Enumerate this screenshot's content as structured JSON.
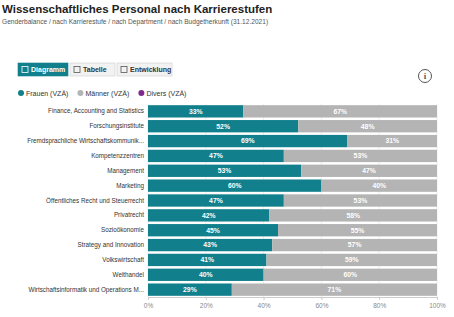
{
  "chart_data": {
    "type": "bar",
    "orientation": "horizontal",
    "stacked": true,
    "data_labels": true,
    "grid": true,
    "legend": "top-left",
    "title": "Wissenschaftliches Personal nach Karrierestufen",
    "subtitle": "Genderbalance / nach Karrierestufe / nach Department / nach Budgetherkunft (31.12.2021)",
    "categories": [
      "Finance, Accounting and Statistics",
      "Forschungsinstitute",
      "Fremdsprachliche Wirtschaftskommunik...",
      "Kompetenzzentren",
      "Management",
      "Marketing",
      "Öffentliches Recht und Steuerrecht",
      "Privatrecht",
      "Sozioökonomie",
      "Strategy and Innovation",
      "Volkswirtschaft",
      "Welthandel",
      "Wirtschaftsinformatik und Operations M..."
    ],
    "series": [
      {
        "name": "Frauen (VZÄ)",
        "color": "#12808c",
        "values": [
          33,
          52,
          69,
          47,
          53,
          60,
          47,
          42,
          45,
          43,
          41,
          40,
          29
        ],
        "value_labels": [
          "33%",
          "52%",
          "69%",
          "47%",
          "53%",
          "60%",
          "47%",
          "42%",
          "45%",
          "43%",
          "41%",
          "40%",
          "29%"
        ]
      },
      {
        "name": "Männer (VZÄ)",
        "color": "#b4b4b4",
        "values": [
          67,
          48,
          31,
          53,
          47,
          40,
          53,
          58,
          55,
          57,
          59,
          60,
          71
        ],
        "value_labels": [
          "67%",
          "48%",
          "31%",
          "53%",
          "47%",
          "40%",
          "53%",
          "58%",
          "55%",
          "57%",
          "59%",
          "60%",
          "71%"
        ]
      },
      {
        "name": "Divers (VZÄ)",
        "color": "#7d2a8c",
        "values": [
          0,
          0,
          0,
          0,
          0,
          0,
          0,
          0,
          0,
          0,
          0,
          0,
          0
        ]
      }
    ],
    "xlim": [
      0,
      100
    ],
    "xticks": [
      {
        "value": 0,
        "label": "0%"
      },
      {
        "value": 20,
        "label": "20%"
      },
      {
        "value": 40,
        "label": "40%"
      },
      {
        "value": 60,
        "label": "60%"
      },
      {
        "value": 80,
        "label": "80%"
      },
      {
        "value": 100,
        "label": "100%"
      }
    ]
  },
  "page": {
    "tabs": [
      "Diagramm",
      "Tabelle",
      "Entwicklung"
    ],
    "selected_tab": "Diagramm",
    "info_icon": "i"
  }
}
